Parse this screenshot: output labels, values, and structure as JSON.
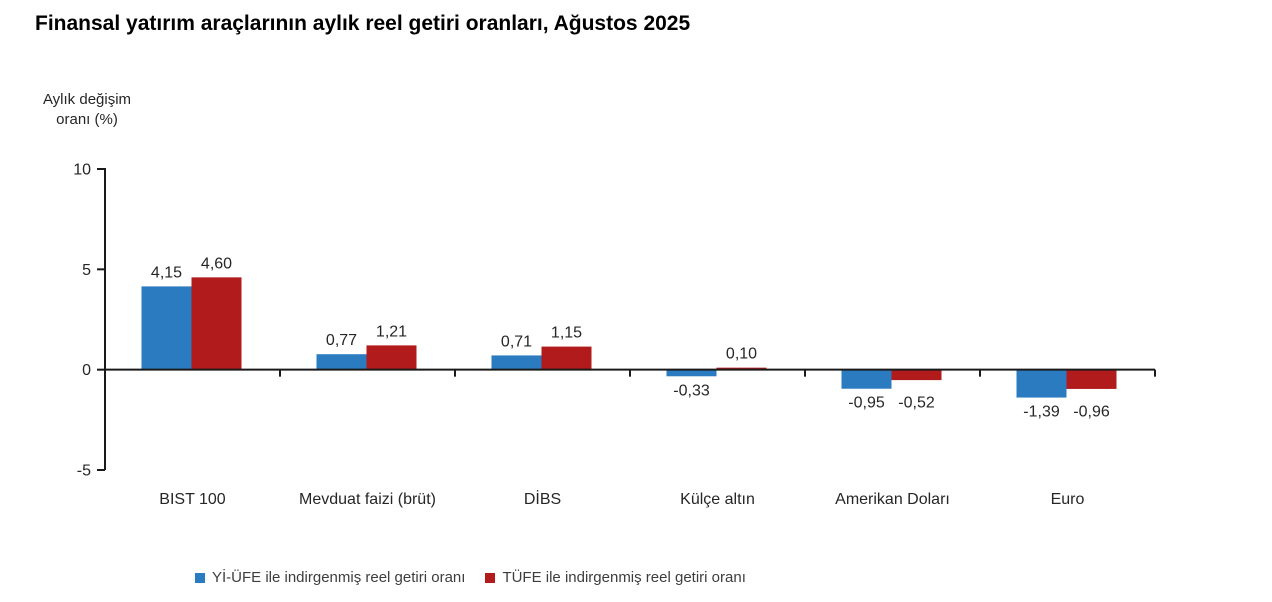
{
  "title": "Finansal yatırım araçlarının aylık reel getiri oranları, Ağustos 2025",
  "y_axis_label": {
    "line1": "Aylık değişim",
    "line2": "oranı (%)"
  },
  "chart_data": {
    "type": "bar",
    "title": "Finansal yatırım araçlarının aylık reel getiri oranları, Ağustos 2025",
    "xlabel": "",
    "ylabel": "Aylık değişim oranı (%)",
    "ylim": [
      -5,
      10
    ],
    "y_ticks": [
      "10",
      "5",
      "0",
      "-5"
    ],
    "y_tick_values": [
      10,
      5,
      0,
      -5
    ],
    "grid": false,
    "legend_position": "bottom",
    "decimal_separator": ",",
    "categories": [
      "BIST 100",
      "Mevduat faizi (brüt)",
      "DİBS",
      "Külçe altın",
      "Amerikan Doları",
      "Euro"
    ],
    "series": [
      {
        "key": "yi-ufe",
        "name": "Yİ-ÜFE ile indirgenmiş reel getiri oranı",
        "color": "#2B7BC0",
        "values": [
          4.15,
          0.77,
          0.71,
          -0.33,
          -0.95,
          -1.39
        ],
        "labels": [
          "4,15",
          "0,77",
          "0,71",
          "-0,33",
          "-0,95",
          "-1,39"
        ]
      },
      {
        "key": "tufe",
        "name": "TÜFE ile indirgenmiş reel getiri oranı",
        "color": "#B11B1B",
        "values": [
          4.6,
          1.21,
          1.15,
          0.1,
          -0.52,
          -0.96
        ],
        "labels": [
          "4,60",
          "1,21",
          "1,15",
          "0,10",
          "-0,52",
          "-0,96"
        ]
      }
    ]
  }
}
